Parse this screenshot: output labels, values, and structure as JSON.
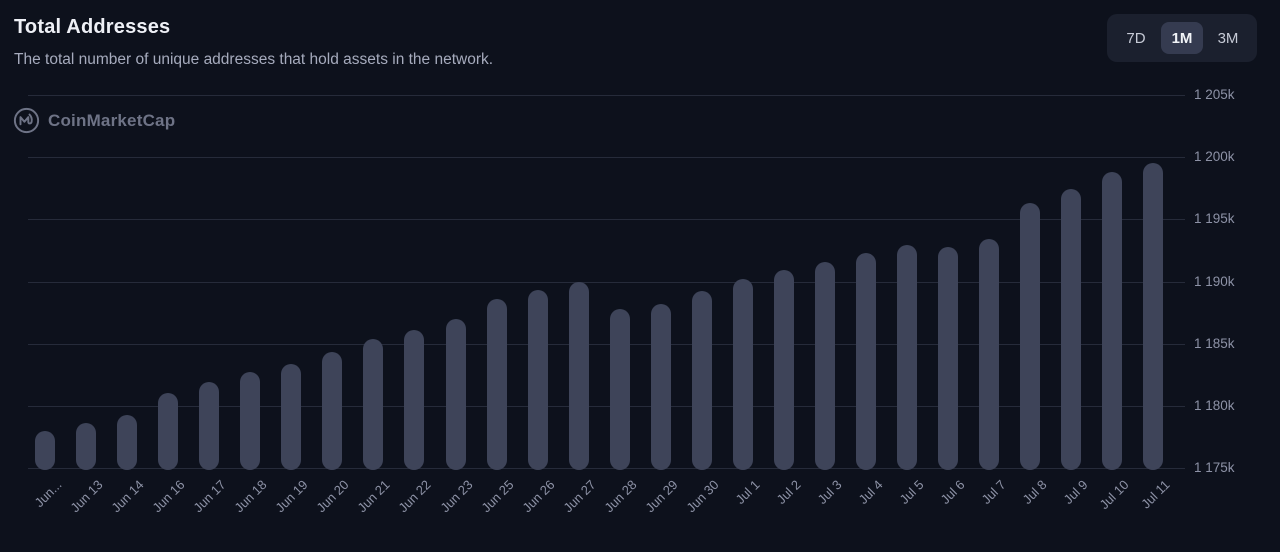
{
  "header": {
    "title": "Total Addresses",
    "subtitle": "The total number of unique addresses that hold assets in the network."
  },
  "period_selector": {
    "options": [
      {
        "label": "7D",
        "selected": false
      },
      {
        "label": "1M",
        "selected": true
      },
      {
        "label": "3M",
        "selected": false
      }
    ]
  },
  "watermark": {
    "label": "CoinMarketCap"
  },
  "colors": {
    "background": "#0d111c",
    "bar": "#3e4459",
    "grid": "#262b3a",
    "title": "#eef0f6",
    "subtitle": "#a6abbd",
    "axis_label": "#8d92a6",
    "selector_bg": "#1b202e",
    "selector_active_bg": "#353b50",
    "selector_text": "#c6cad6",
    "selector_active_text": "#f2f4f8",
    "watermark": "#6e7386"
  },
  "chart_data": {
    "type": "bar",
    "title": "Total Addresses",
    "xlabel": "",
    "ylabel": "",
    "value_unit": "thousand addresses (k)",
    "ylim": [
      1175,
      1205
    ],
    "grid": true,
    "y_axis_position": "right",
    "yticks": [
      {
        "value": 1205,
        "label": "1 205k"
      },
      {
        "value": 1200,
        "label": "1 200k"
      },
      {
        "value": 1195,
        "label": "1 195k"
      },
      {
        "value": 1190,
        "label": "1 190k"
      },
      {
        "value": 1185,
        "label": "1 185k"
      },
      {
        "value": 1180,
        "label": "1 180k"
      },
      {
        "value": 1175,
        "label": "1 175k"
      }
    ],
    "categories": [
      "Jun...",
      "Jun 13",
      "Jun 14",
      "Jun 16",
      "Jun 17",
      "Jun 18",
      "Jun 19",
      "Jun 20",
      "Jun 21",
      "Jun 22",
      "Jun 23",
      "Jun 25",
      "Jun 26",
      "Jun 27",
      "Jun 28",
      "Jun 29",
      "Jun 30",
      "Jul 1",
      "Jul 2",
      "Jul 3",
      "Jul 4",
      "Jul 5",
      "Jul 6",
      "Jul 7",
      "Jul 8",
      "Jul 9",
      "Jul 10",
      "Jul 11"
    ],
    "values": [
      1178.0,
      1178.6,
      1179.3,
      1181.0,
      1181.9,
      1182.7,
      1183.4,
      1184.3,
      1185.4,
      1186.1,
      1187.0,
      1188.6,
      1189.3,
      1190.0,
      1187.8,
      1188.2,
      1189.2,
      1190.2,
      1190.9,
      1191.6,
      1192.3,
      1192.9,
      1192.8,
      1193.4,
      1196.3,
      1197.4,
      1198.8,
      1199.5
    ]
  }
}
